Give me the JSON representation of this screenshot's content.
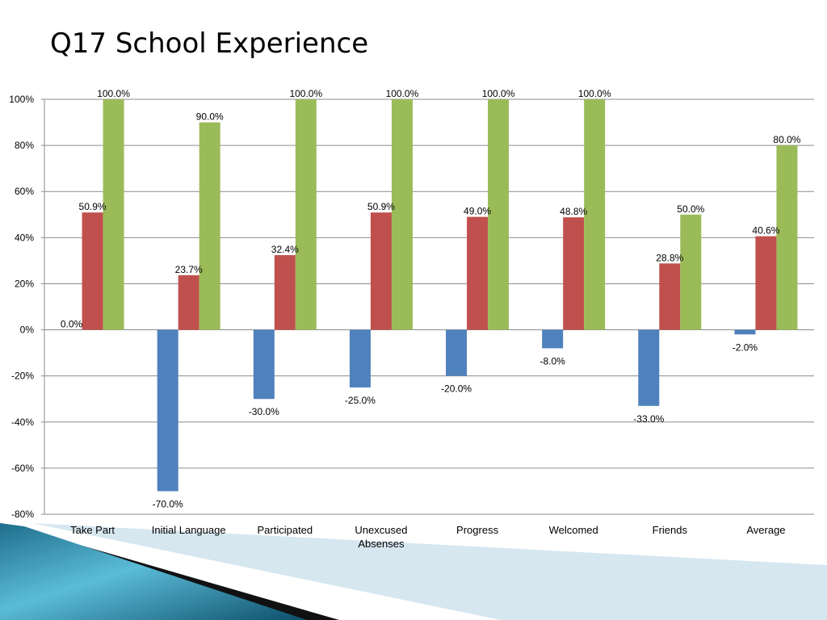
{
  "slide": {
    "title": "Q17 School Experience"
  },
  "chart_data": {
    "type": "bar",
    "title": "",
    "xlabel": "",
    "ylabel": "",
    "ylim": [
      -80,
      100
    ],
    "ytick_step": 20,
    "ytick_labels": [
      "-80%",
      "-60%",
      "-40%",
      "-20%",
      "0%",
      "20%",
      "40%",
      "60%",
      "80%",
      "100%"
    ],
    "grid": true,
    "legend": "none",
    "categories": [
      [
        "Take Part"
      ],
      [
        "Initial Language"
      ],
      [
        "Participated"
      ],
      [
        "Unexcused",
        "Absenses"
      ],
      [
        "Progress"
      ],
      [
        "Welcomed"
      ],
      [
        "Friends"
      ],
      [
        "Average"
      ]
    ],
    "series": [
      {
        "color": "#4f81bd",
        "values": [
          0.0,
          -70.0,
          -30.0,
          -25.0,
          -20.0,
          -8.0,
          -33.0,
          -2.0
        ],
        "labels": [
          "0.0%",
          "-70.0%",
          "-30.0%",
          "-25.0%",
          "-20.0%",
          "-8.0%",
          "-33.0%",
          "-2.0%"
        ]
      },
      {
        "color": "#c0504d",
        "values": [
          50.9,
          23.7,
          32.4,
          50.9,
          49.0,
          48.8,
          28.8,
          40.6
        ],
        "labels": [
          "50.9%",
          "23.7%",
          "32.4%",
          "50.9%",
          "49.0%",
          "48.8%",
          "28.8%",
          "40.6%"
        ]
      },
      {
        "color": "#9bbb59",
        "values": [
          100.0,
          90.0,
          100.0,
          100.0,
          100.0,
          100.0,
          50.0,
          80.0
        ],
        "labels": [
          "100.0%",
          "90.0%",
          "100.0%",
          "100.0%",
          "100.0%",
          "100.0%",
          "50.0%",
          "80.0%"
        ]
      }
    ]
  }
}
